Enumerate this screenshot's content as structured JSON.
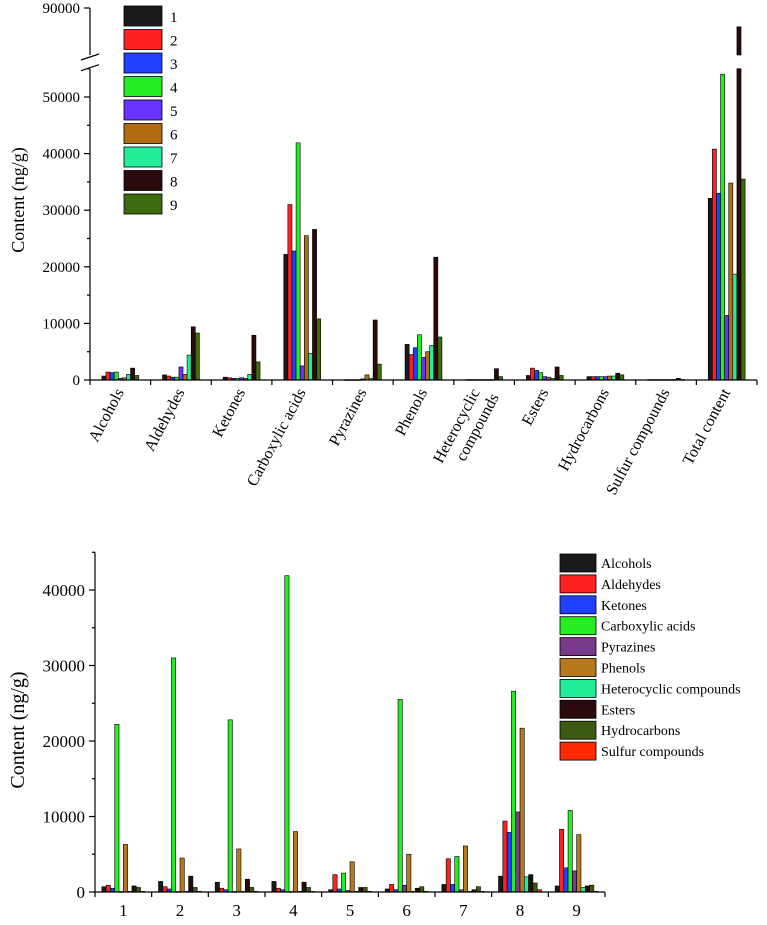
{
  "chart_data": [
    {
      "type": "bar",
      "ylabel": "Content (ng/g)",
      "ylim_lower": [
        0,
        55000
      ],
      "ylim_upper": [
        75000,
        90000
      ],
      "yticks": [
        "0",
        "10000",
        "20000",
        "30000",
        "40000",
        "50000",
        "90000"
      ],
      "categories": [
        "Alcohols",
        "Aldehydes",
        "Ketones",
        "Carboxylic acids",
        "Pyrazines",
        "Phenols",
        "Heterocyclic compounds",
        "Esters",
        "Hydrocarbons",
        "Sulfur compounds",
        "Total content"
      ],
      "category_lines": [
        [
          "Alcohols"
        ],
        [
          "Aldehydes"
        ],
        [
          "Ketones"
        ],
        [
          "Carboxylic acids"
        ],
        [
          "Pyrazines"
        ],
        [
          "Phenols"
        ],
        [
          "Heterocyclic",
          "compounds"
        ],
        [
          "Esters"
        ],
        [
          "Hydrocarbons"
        ],
        [
          "Sulfur compounds"
        ],
        [
          "Total content"
        ]
      ],
      "legend_position": "top-left",
      "series": [
        {
          "name": "1",
          "color": "#1a1a1a",
          "values": [
            700,
            900,
            500,
            22200,
            60,
            6300,
            80,
            800,
            600,
            80,
            32100
          ]
        },
        {
          "name": "2",
          "color": "#ff2020",
          "values": [
            1400,
            700,
            400,
            31000,
            60,
            4500,
            80,
            2100,
            600,
            80,
            40800
          ]
        },
        {
          "name": "3",
          "color": "#2040ff",
          "values": [
            1300,
            500,
            300,
            22800,
            60,
            5700,
            80,
            1700,
            600,
            80,
            33000
          ]
        },
        {
          "name": "4",
          "color": "#22ee22",
          "values": [
            1400,
            500,
            300,
            41900,
            60,
            8000,
            80,
            1300,
            600,
            80,
            54000
          ]
        },
        {
          "name": "5",
          "color": "#6633ff",
          "values": [
            300,
            2300,
            400,
            2500,
            200,
            4000,
            80,
            600,
            600,
            80,
            11400
          ]
        },
        {
          "name": "6",
          "color": "#b36b10",
          "values": [
            400,
            1000,
            300,
            25500,
            900,
            5000,
            80,
            500,
            700,
            80,
            34800
          ]
        },
        {
          "name": "7",
          "color": "#22ee99",
          "values": [
            1000,
            4400,
            1000,
            4700,
            300,
            6100,
            80,
            300,
            700,
            80,
            18700
          ]
        },
        {
          "name": "8",
          "color": "#2a0a0a",
          "values": [
            2100,
            9400,
            7900,
            26600,
            10600,
            21700,
            2000,
            2300,
            1200,
            300,
            84000
          ]
        },
        {
          "name": "9",
          "color": "#3d6b0d",
          "values": [
            800,
            8300,
            3200,
            10800,
            2800,
            7600,
            600,
            800,
            900,
            80,
            35500
          ]
        }
      ]
    },
    {
      "type": "bar",
      "ylabel": "Content (ng/g)",
      "ylim": [
        0,
        45000
      ],
      "yticks": [
        "0",
        "10000",
        "20000",
        "30000",
        "40000"
      ],
      "categories": [
        "1",
        "2",
        "3",
        "4",
        "5",
        "6",
        "7",
        "8",
        "9"
      ],
      "legend_position": "top-right",
      "series": [
        {
          "name": "Alcohols",
          "color": "#1a1a1a",
          "values": [
            700,
            1400,
            1300,
            1400,
            300,
            400,
            1000,
            2100,
            800
          ]
        },
        {
          "name": "Aldehydes",
          "color": "#ff2020",
          "values": [
            900,
            700,
            500,
            500,
            2300,
            1000,
            4400,
            9400,
            8300
          ]
        },
        {
          "name": "Ketones",
          "color": "#2040ff",
          "values": [
            500,
            400,
            300,
            300,
            400,
            300,
            1000,
            7900,
            3200
          ]
        },
        {
          "name": "Carboxylic acids",
          "color": "#22ee22",
          "values": [
            22200,
            31000,
            22800,
            41900,
            2500,
            25500,
            4700,
            26600,
            10800
          ]
        },
        {
          "name": "Pyrazines",
          "color": "#7a3a8a",
          "values": [
            60,
            60,
            60,
            60,
            200,
            900,
            300,
            10600,
            2800
          ]
        },
        {
          "name": "Phenols",
          "color": "#b8791c",
          "values": [
            6300,
            4500,
            5700,
            8000,
            4000,
            5000,
            6100,
            21700,
            7600
          ]
        },
        {
          "name": "Heterocyclic compounds",
          "color": "#22ee99",
          "values": [
            80,
            80,
            80,
            80,
            80,
            80,
            80,
            2000,
            600
          ]
        },
        {
          "name": "Esters",
          "color": "#2a0a0a",
          "values": [
            800,
            2100,
            1700,
            1300,
            600,
            500,
            300,
            2300,
            800
          ]
        },
        {
          "name": "Hydrocarbons",
          "color": "#3d5a12",
          "values": [
            600,
            600,
            600,
            600,
            600,
            700,
            700,
            1200,
            900
          ]
        },
        {
          "name": "Sulfur compounds",
          "color": "#ff2a00",
          "values": [
            80,
            80,
            80,
            80,
            80,
            80,
            80,
            300,
            80
          ]
        }
      ]
    }
  ]
}
